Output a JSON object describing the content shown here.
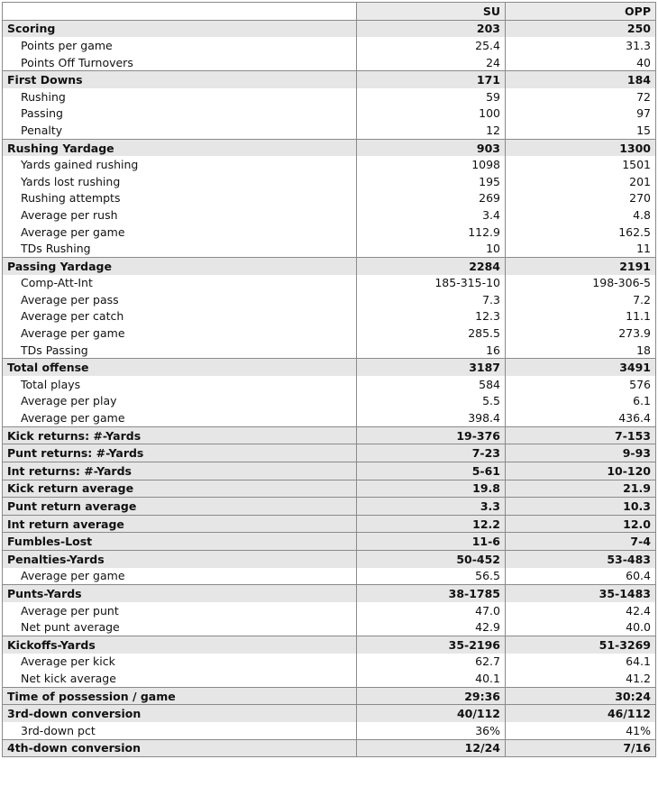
{
  "table": {
    "columns": [
      "SU",
      "OPP"
    ],
    "sections": [
      {
        "label": "Scoring",
        "su": "203",
        "opp": "250",
        "items": [
          {
            "label": "Points per game",
            "su": "25.4",
            "opp": "31.3"
          },
          {
            "label": "Points Off Turnovers",
            "su": "24",
            "opp": "40"
          }
        ]
      },
      {
        "label": "First Downs",
        "su": "171",
        "opp": "184",
        "items": [
          {
            "label": "Rushing",
            "su": "59",
            "opp": "72"
          },
          {
            "label": "Passing",
            "su": "100",
            "opp": "97"
          },
          {
            "label": "Penalty",
            "su": "12",
            "opp": "15"
          }
        ]
      },
      {
        "label": "Rushing Yardage",
        "su": "903",
        "opp": "1300",
        "items": [
          {
            "label": "Yards gained rushing",
            "su": "1098",
            "opp": "1501"
          },
          {
            "label": "Yards lost rushing",
            "su": "195",
            "opp": "201"
          },
          {
            "label": "Rushing attempts",
            "su": "269",
            "opp": "270"
          },
          {
            "label": "Average per rush",
            "su": "3.4",
            "opp": "4.8"
          },
          {
            "label": "Average per game",
            "su": "112.9",
            "opp": "162.5"
          },
          {
            "label": "TDs Rushing",
            "su": "10",
            "opp": "11"
          }
        ]
      },
      {
        "label": "Passing Yardage",
        "su": "2284",
        "opp": "2191",
        "items": [
          {
            "label": "Comp-Att-Int",
            "su": "185-315-10",
            "opp": "198-306-5"
          },
          {
            "label": "Average per pass",
            "su": "7.3",
            "opp": "7.2"
          },
          {
            "label": "Average per catch",
            "su": "12.3",
            "opp": "11.1"
          },
          {
            "label": "Average per game",
            "su": "285.5",
            "opp": "273.9"
          },
          {
            "label": "TDs Passing",
            "su": "16",
            "opp": "18"
          }
        ]
      },
      {
        "label": "Total offense",
        "su": "3187",
        "opp": "3491",
        "items": [
          {
            "label": "Total plays",
            "su": "584",
            "opp": "576"
          },
          {
            "label": "Average per play",
            "su": "5.5",
            "opp": "6.1"
          },
          {
            "label": "Average per game",
            "su": "398.4",
            "opp": "436.4"
          }
        ]
      },
      {
        "label": "Kick returns: #-Yards",
        "su": "19-376",
        "opp": "7-153",
        "items": []
      },
      {
        "label": "Punt returns: #-Yards",
        "su": "7-23",
        "opp": "9-93",
        "items": []
      },
      {
        "label": "Int returns: #-Yards",
        "su": "5-61",
        "opp": "10-120",
        "items": []
      },
      {
        "label": "Kick return average",
        "su": "19.8",
        "opp": "21.9",
        "items": []
      },
      {
        "label": "Punt return average",
        "su": "3.3",
        "opp": "10.3",
        "items": []
      },
      {
        "label": "Int return average",
        "su": "12.2",
        "opp": "12.0",
        "items": []
      },
      {
        "label": "Fumbles-Lost",
        "su": "11-6",
        "opp": "7-4",
        "items": []
      },
      {
        "label": "Penalties-Yards",
        "su": "50-452",
        "opp": "53-483",
        "items": [
          {
            "label": "Average per game",
            "su": "56.5",
            "opp": "60.4"
          }
        ]
      },
      {
        "label": "Punts-Yards",
        "su": "38-1785",
        "opp": "35-1483",
        "items": [
          {
            "label": "Average per punt",
            "su": "47.0",
            "opp": "42.4"
          },
          {
            "label": "Net punt average",
            "su": "42.9",
            "opp": "40.0"
          }
        ]
      },
      {
        "label": "Kickoffs-Yards",
        "su": "35-2196",
        "opp": "51-3269",
        "items": [
          {
            "label": "Average per kick",
            "su": "62.7",
            "opp": "64.1"
          },
          {
            "label": "Net kick average",
            "su": "40.1",
            "opp": "41.2"
          }
        ]
      },
      {
        "label": "Time of possession / game",
        "su": "29:36",
        "opp": "30:24",
        "items": []
      },
      {
        "label": "3rd-down conversion",
        "su": "40/112",
        "opp": "46/112",
        "items": [
          {
            "label": "3rd-down pct",
            "su": "36%",
            "opp": "41%"
          }
        ]
      },
      {
        "label": "4th-down conversion",
        "su": "12/24",
        "opp": "7/16",
        "items": []
      }
    ]
  }
}
